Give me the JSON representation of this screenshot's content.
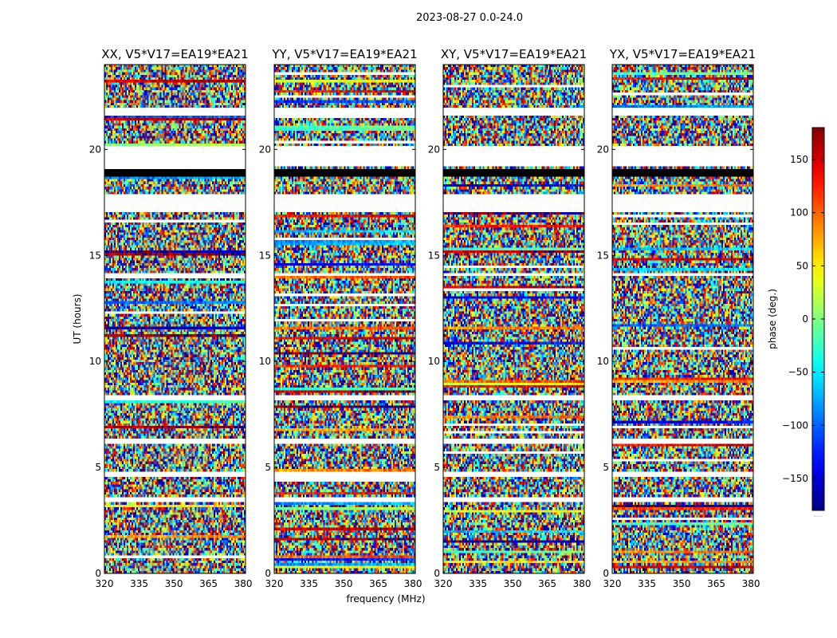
{
  "chart_data": {
    "type": "heatmap",
    "title": "2023-08-27 0.0-24.0",
    "xlabel": "frequency (MHz)",
    "ylabel": "UT (hours)",
    "xlim": [
      320,
      381
    ],
    "ylim": [
      0,
      24
    ],
    "xticks": [
      320,
      335,
      350,
      365,
      380
    ],
    "yticks": [
      0,
      5,
      10,
      15,
      20
    ],
    "panels": [
      {
        "title": "XX, V5*V17=EA19*EA21"
      },
      {
        "title": "YY, V5*V17=EA19*EA21"
      },
      {
        "title": "XY, V5*V17=EA19*EA21"
      },
      {
        "title": "YX, V5*V17=EA19*EA21"
      }
    ],
    "colorbar": {
      "label": "phase (deg.)",
      "range": [
        -180,
        180
      ],
      "ticks": [
        -150,
        -100,
        -50,
        0,
        50,
        100,
        150
      ],
      "tick_labels": [
        "−150",
        "−100",
        "−50",
        "0",
        "50",
        "100",
        "150"
      ],
      "colormap": "jet",
      "overflow_label": "....."
    },
    "flagged_gaps_ut_hours": [
      [
        19.15,
        20.15
      ],
      [
        21.55,
        22.0
      ],
      [
        17.1,
        17.9
      ],
      [
        14.0,
        14.15
      ],
      [
        6.1,
        6.3
      ],
      [
        8.2,
        8.4
      ],
      [
        4.6,
        4.75
      ],
      [
        3.4,
        3.55
      ]
    ],
    "masked_black_rows_ut_hours": [
      [
        18.75,
        19.05
      ]
    ]
  }
}
